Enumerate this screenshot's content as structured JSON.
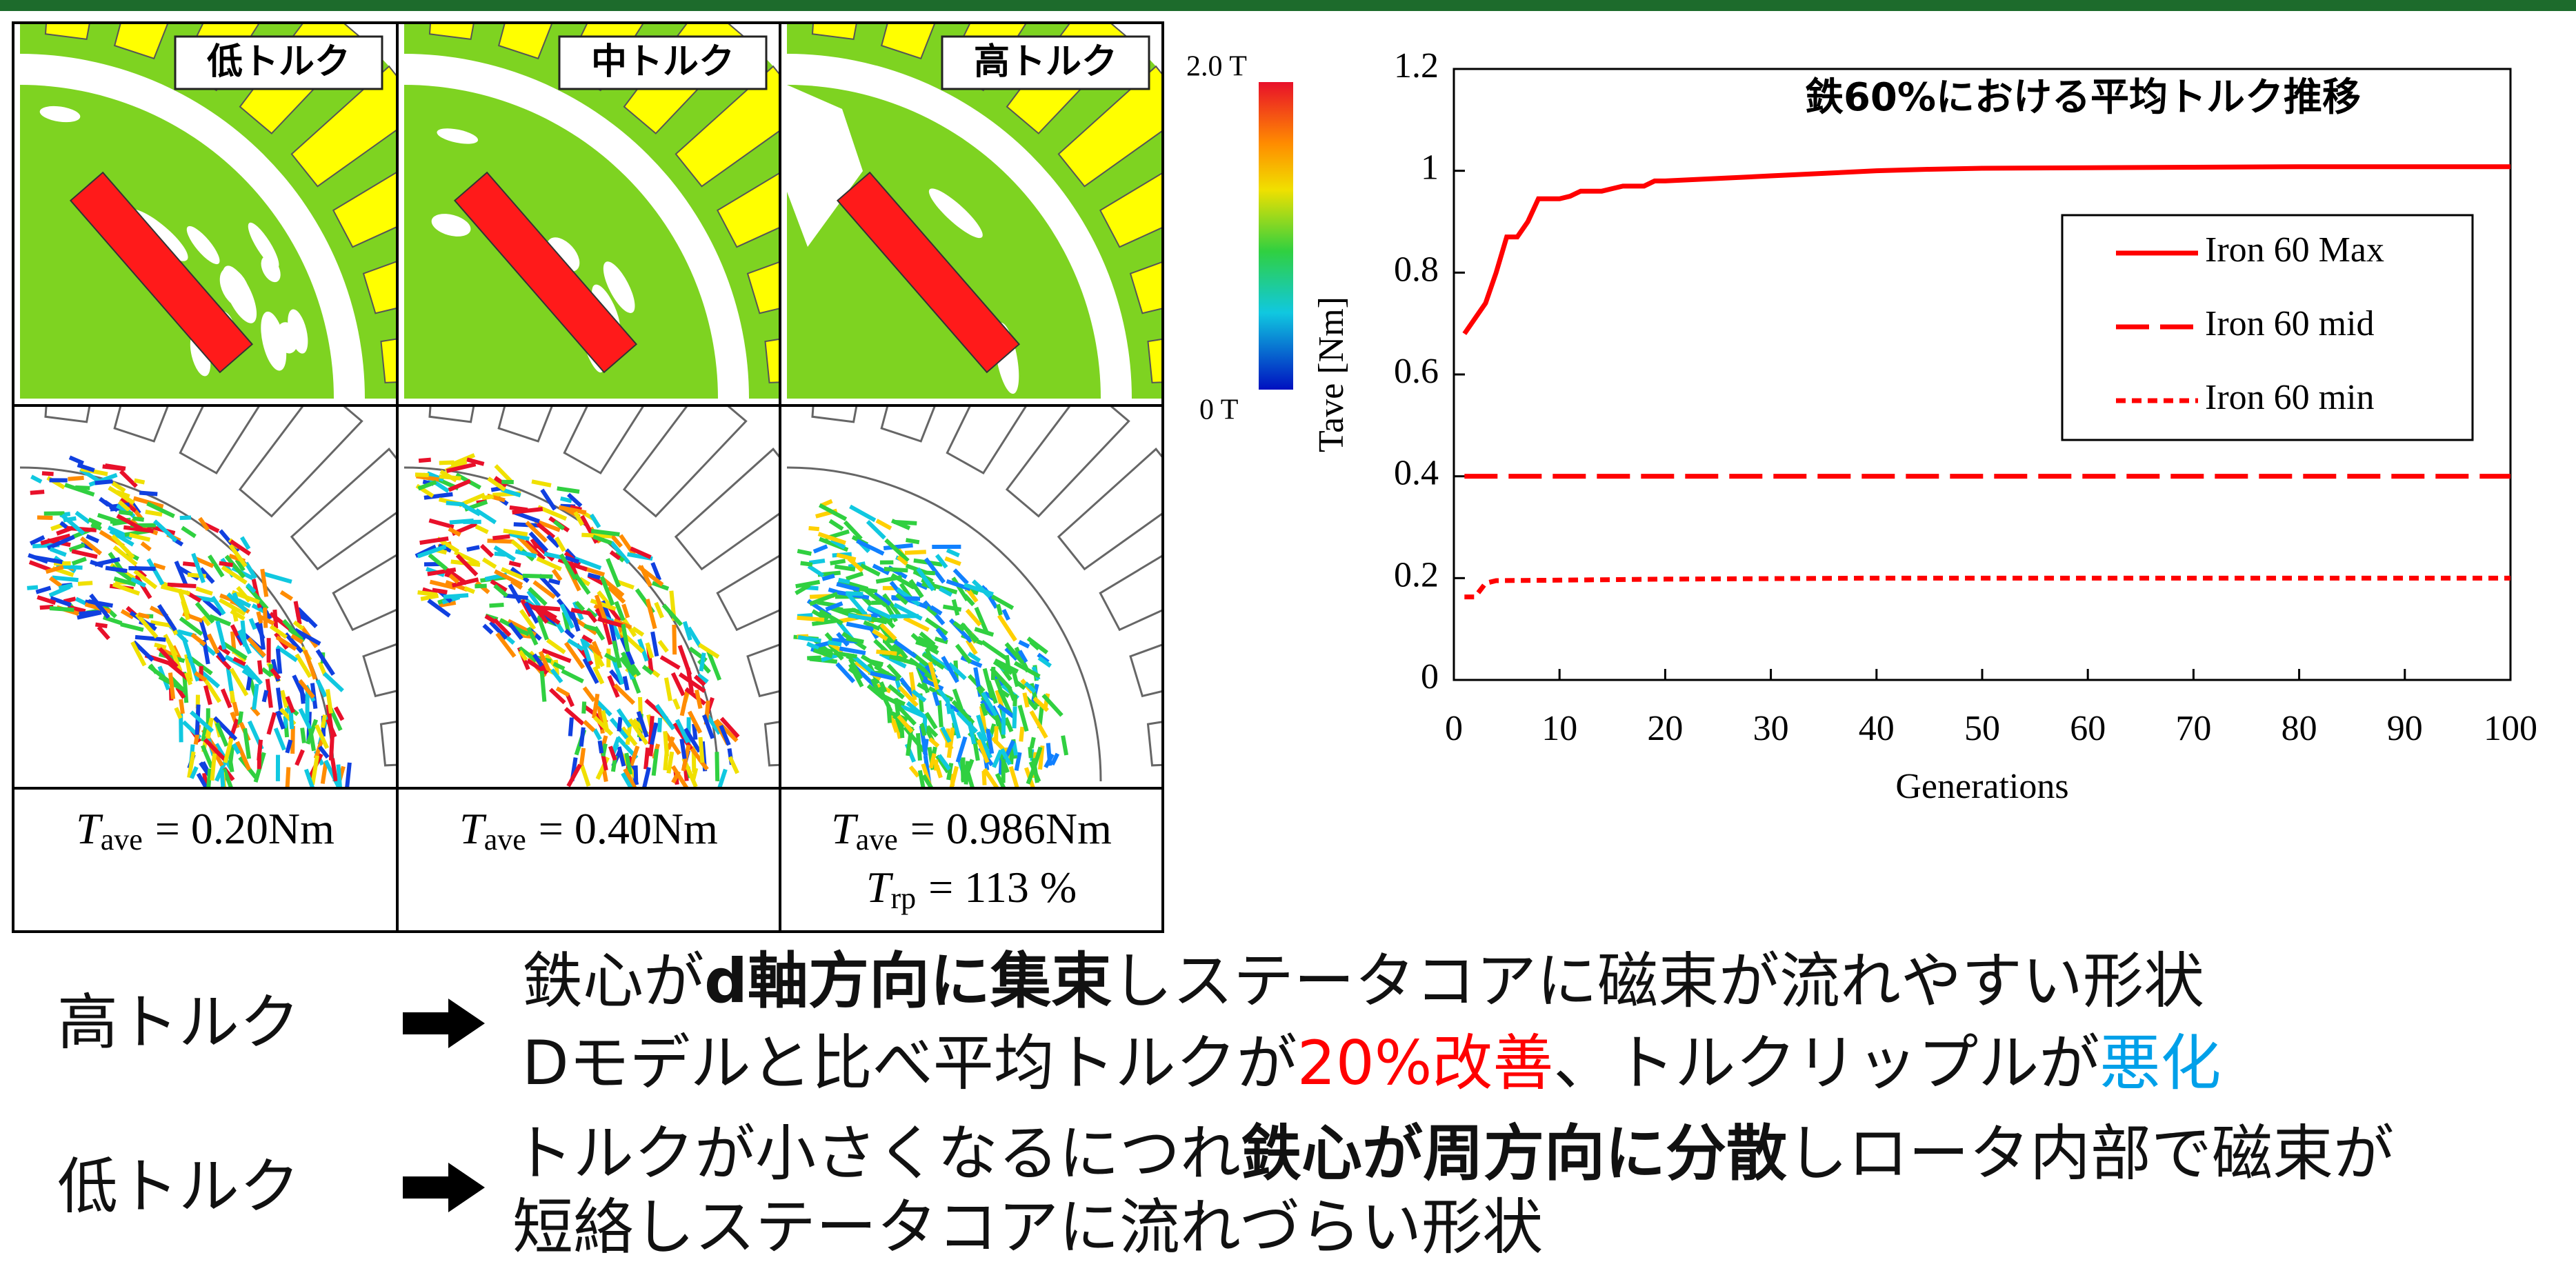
{
  "table": {
    "headers": [
      "低トルク",
      "中トルク",
      "高トルク"
    ],
    "results": [
      [
        {
          "symbol": "T",
          "subscript": "ave",
          "text": "= 0.20Nm"
        }
      ],
      [
        {
          "symbol": "T",
          "subscript": "ave",
          "text": "= 0.40Nm"
        }
      ],
      [
        {
          "symbol": "T",
          "subscript": "ave",
          "text": "= 0.986Nm"
        },
        {
          "symbol": "T",
          "subscript": "rp",
          "text": "= 113 %"
        }
      ]
    ]
  },
  "colorbar": {
    "max_label": "2.0 T",
    "min_label": "0 T"
  },
  "chart_data": {
    "type": "line",
    "title": "鉄60%における平均トルク推移",
    "x_label": "Generations",
    "y_label": "Tave [Nm]",
    "xlim": [
      0,
      100
    ],
    "ylim": [
      0,
      1.2
    ],
    "xticks": [
      0,
      10,
      20,
      30,
      40,
      50,
      60,
      70,
      80,
      90,
      100
    ],
    "yticks": [
      0,
      0.2,
      0.4,
      0.6,
      0.8,
      1,
      1.2
    ],
    "series": [
      {
        "name": "Iron 60 Max",
        "color": "#ff0000",
        "dash": "solid",
        "x": [
          1,
          2,
          3,
          4,
          5,
          6,
          7,
          8,
          9,
          10,
          11,
          12,
          13,
          14,
          15,
          16,
          17,
          18,
          19,
          20,
          25,
          30,
          35,
          40,
          45,
          50,
          60,
          70,
          80,
          90,
          100
        ],
        "values": [
          0.68,
          0.71,
          0.74,
          0.8,
          0.87,
          0.87,
          0.9,
          0.945,
          0.945,
          0.945,
          0.95,
          0.96,
          0.96,
          0.96,
          0.965,
          0.97,
          0.97,
          0.97,
          0.98,
          0.98,
          0.985,
          0.99,
          0.995,
          1.0,
          1.003,
          1.005,
          1.006,
          1.007,
          1.008,
          1.008,
          1.008
        ]
      },
      {
        "name": "Iron 60 mid",
        "color": "#ff0000",
        "dash": "dashed",
        "x": [
          1,
          100
        ],
        "values": [
          0.4,
          0.4
        ]
      },
      {
        "name": "Iron 60 min",
        "color": "#ff0000",
        "dash": "dotted",
        "x": [
          1,
          2,
          3,
          4,
          10,
          20,
          40,
          100
        ],
        "values": [
          0.163,
          0.163,
          0.19,
          0.195,
          0.196,
          0.198,
          0.2,
          0.2
        ]
      }
    ]
  },
  "notes": [
    {
      "label": "高トルク",
      "lines": [
        [
          {
            "text": "鉄心が",
            "style": "normal"
          },
          {
            "text": "d軸方向に集束",
            "style": "bold"
          },
          {
            "text": "しステータコアに磁束が流れやすい形状",
            "style": "normal"
          }
        ],
        [
          {
            "text": "Dモデルと比べ平均トルクが",
            "style": "normal"
          },
          {
            "text": "20%改善",
            "style": "red"
          },
          {
            "text": "、トルクリップルが",
            "style": "normal"
          },
          {
            "text": "悪化",
            "style": "cyan"
          }
        ]
      ]
    },
    {
      "label": "低トルク",
      "lines": [
        [
          {
            "text": "トルクが小さくなるにつれ",
            "style": "normal"
          },
          {
            "text": "鉄心が周方向に分散",
            "style": "bold"
          },
          {
            "text": "しロータ内部で磁束が",
            "style": "normal"
          }
        ],
        [
          {
            "text": "短絡しステータコアに流れづらい形状",
            "style": "normal"
          }
        ]
      ]
    }
  ]
}
